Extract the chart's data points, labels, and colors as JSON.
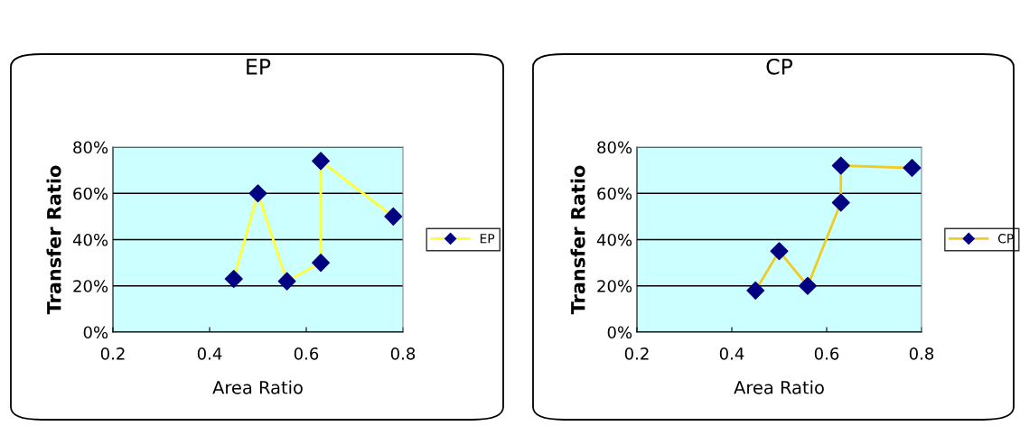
{
  "chart_data": [
    {
      "type": "line",
      "title": "EP",
      "xlabel": "Area Ratio",
      "ylabel": "Transfer Ratio",
      "x": [
        0.45,
        0.5,
        0.56,
        0.63,
        0.63,
        0.78
      ],
      "series": [
        {
          "name": "EP",
          "color": "#ffff33",
          "colors": [
            "#000080",
            "#000080",
            "#000080",
            "#000080",
            "#000080",
            "#000080"
          ],
          "values": [
            23,
            60,
            22,
            30,
            74,
            50
          ]
        }
      ],
      "xlim": [
        0.2,
        0.8
      ],
      "xticks": [
        0.2,
        0.4,
        0.6,
        0.8
      ],
      "ylim": [
        0,
        80
      ],
      "yticks": [
        {
          "value": 0,
          "label": "0%"
        },
        {
          "value": 20,
          "label": "20%"
        },
        {
          "value": 40,
          "label": "40%"
        },
        {
          "value": 60,
          "label": "60%"
        },
        {
          "value": 80,
          "label": "80%"
        }
      ],
      "grid": "y",
      "legend": "right",
      "marker": "diamond",
      "line_style": "solid"
    },
    {
      "type": "line",
      "title": "CP",
      "xlabel": "Area Ratio",
      "ylabel": "Transfer Ratio",
      "x": [
        0.45,
        0.5,
        0.56,
        0.63,
        0.63,
        0.78
      ],
      "series": [
        {
          "name": "CP",
          "color": "#f0cc20",
          "colors": [
            "#000080",
            "#000080",
            "#000080",
            "#000080",
            "#000080",
            "#000080"
          ],
          "values": [
            18,
            35,
            20,
            56,
            72,
            71
          ]
        }
      ],
      "xlim": [
        0.2,
        0.8
      ],
      "xticks": [
        0.2,
        0.4,
        0.6,
        0.8
      ],
      "ylim": [
        0,
        80
      ],
      "yticks": [
        {
          "value": 0,
          "label": "0%"
        },
        {
          "value": 20,
          "label": "20%"
        },
        {
          "value": 40,
          "label": "40%"
        },
        {
          "value": 60,
          "label": "60%"
        },
        {
          "value": 80,
          "label": "80%"
        }
      ],
      "grid": "y",
      "legend": "right",
      "marker": "diamond",
      "line_style": "solid"
    }
  ]
}
